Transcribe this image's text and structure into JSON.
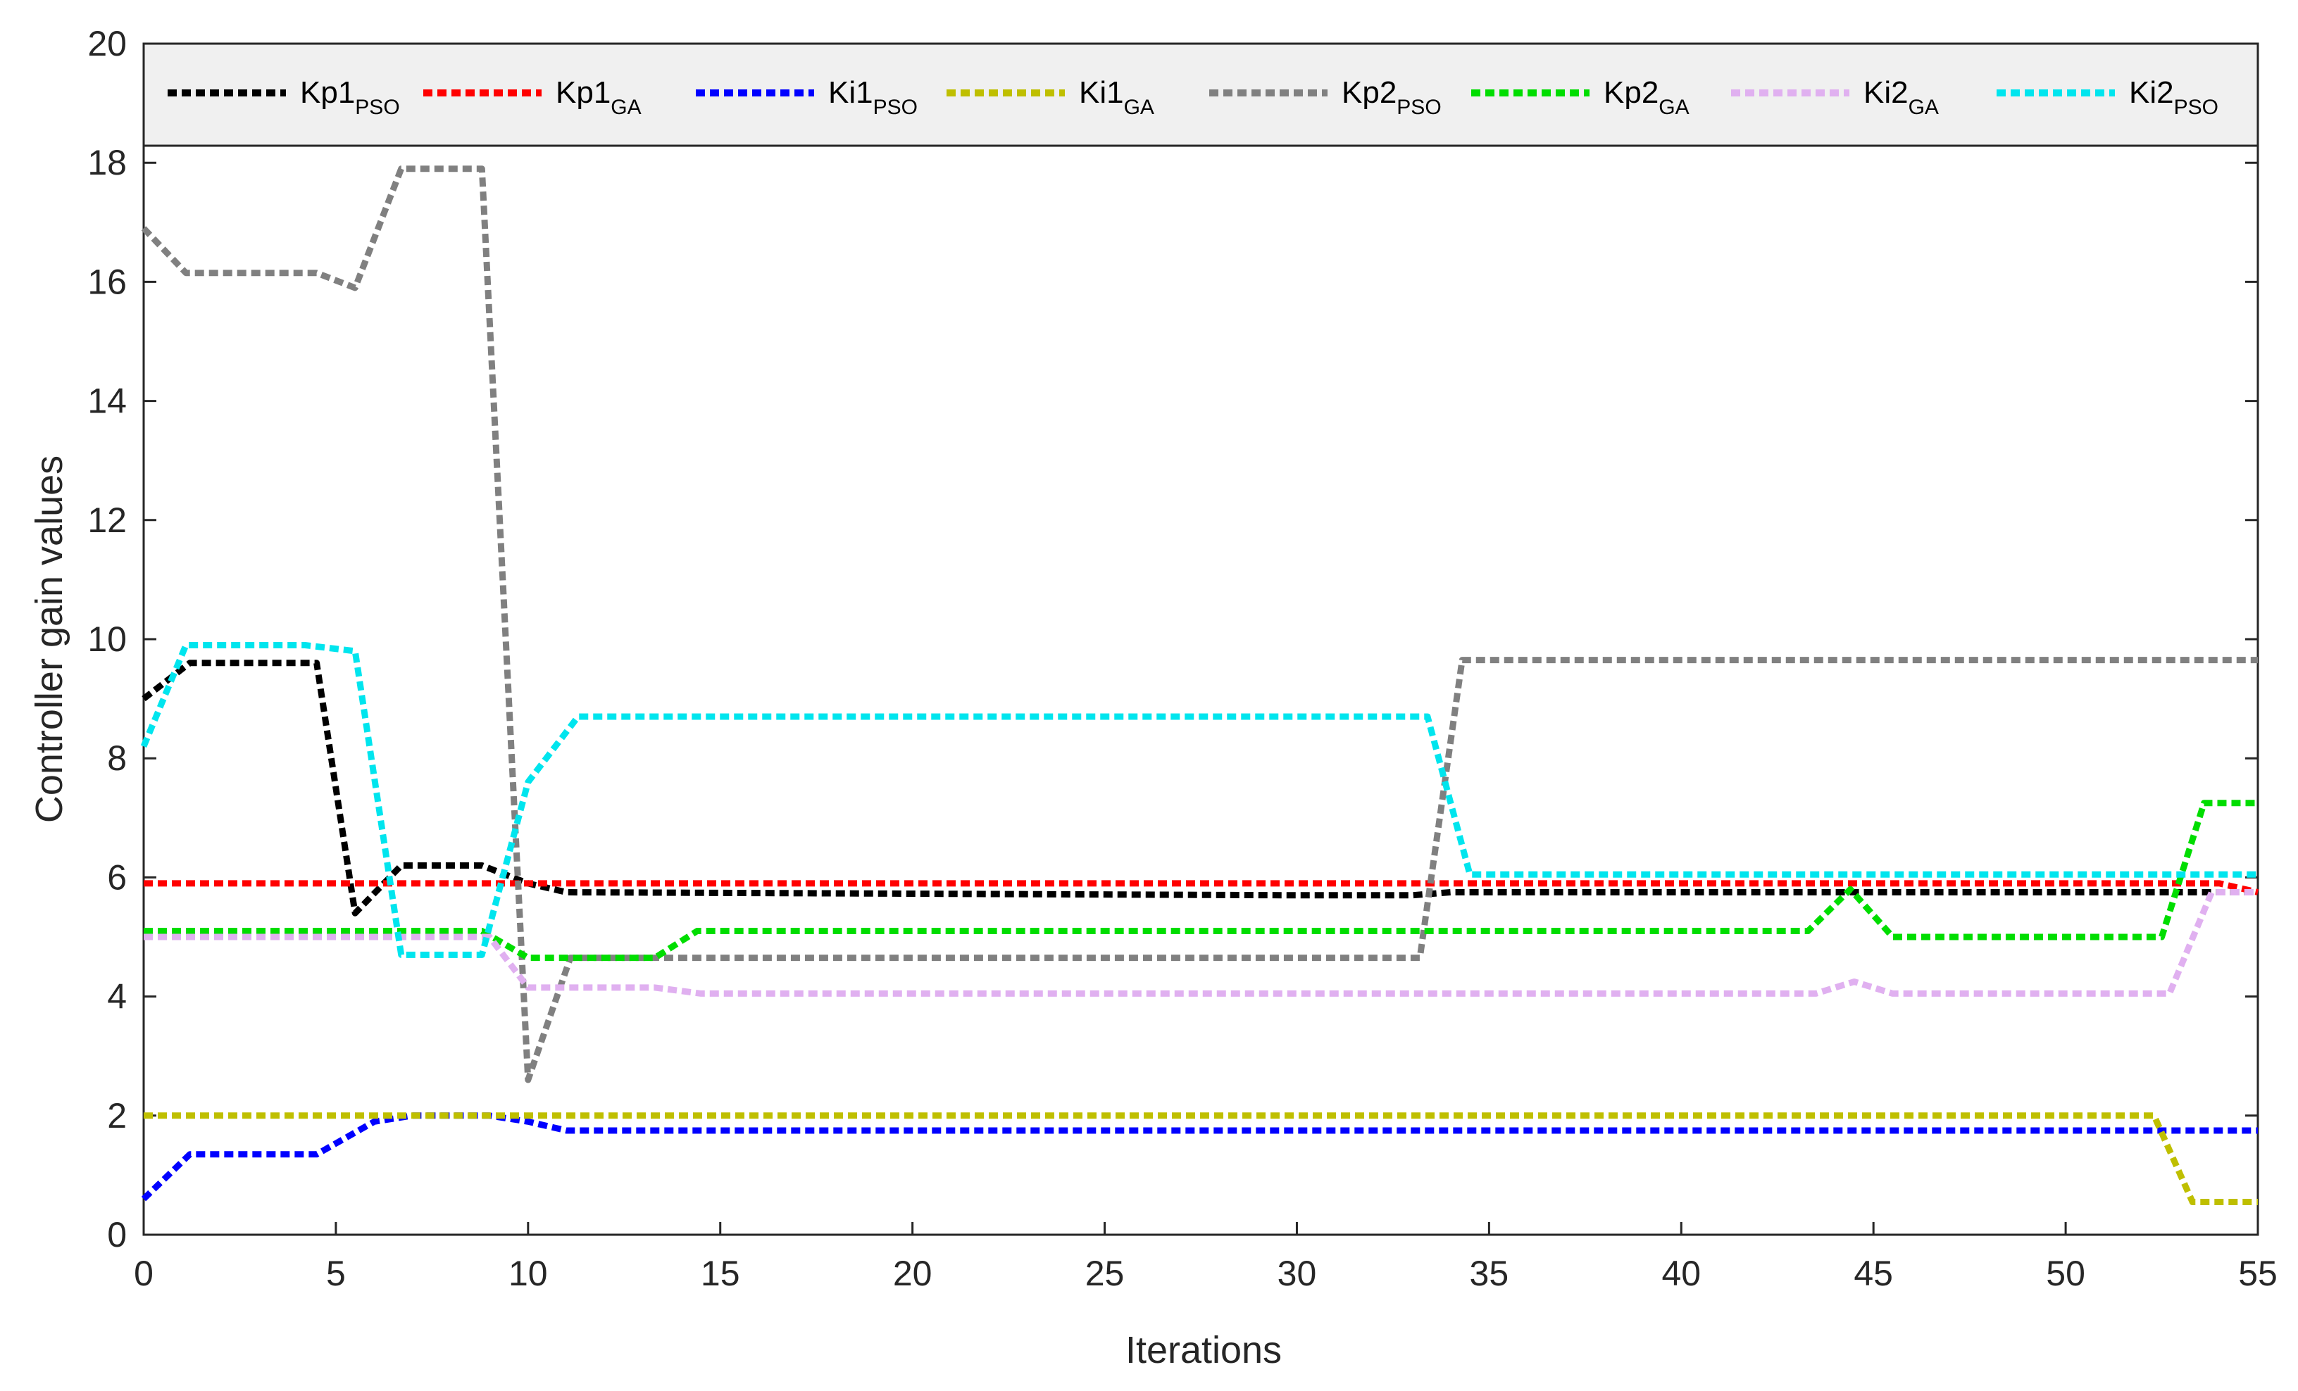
{
  "chart_data": {
    "type": "line",
    "title": "",
    "xlabel": "Iterations",
    "ylabel": "Controller gain values",
    "xlim": [
      0,
      55
    ],
    "ylim": [
      0,
      20
    ],
    "xticks": [
      0,
      5,
      10,
      15,
      20,
      25,
      30,
      35,
      40,
      45,
      50,
      55
    ],
    "yticks": [
      0,
      2,
      4,
      6,
      8,
      10,
      12,
      14,
      16,
      18,
      20
    ],
    "legend_position": "top",
    "series": [
      {
        "name": "Kp1",
        "sub": "PSO",
        "color": "#000000",
        "points": [
          [
            0,
            9.0
          ],
          [
            1.2,
            9.6
          ],
          [
            4.5,
            9.6
          ],
          [
            5.5,
            5.4
          ],
          [
            6.7,
            6.2
          ],
          [
            8.8,
            6.2
          ],
          [
            10,
            5.9
          ],
          [
            11,
            5.75
          ],
          [
            30,
            5.7
          ],
          [
            33,
            5.7
          ],
          [
            34,
            5.75
          ],
          [
            55,
            5.75
          ]
        ]
      },
      {
        "name": "Kp1",
        "sub": "GA",
        "color": "#ff0000",
        "points": [
          [
            0,
            5.9
          ],
          [
            54,
            5.9
          ],
          [
            55,
            5.75
          ]
        ]
      },
      {
        "name": "Ki1",
        "sub": "PSO",
        "color": "#0000ff",
        "points": [
          [
            0,
            0.6
          ],
          [
            1.2,
            1.35
          ],
          [
            4.5,
            1.35
          ],
          [
            6,
            1.9
          ],
          [
            7,
            2.0
          ],
          [
            9,
            2.0
          ],
          [
            10,
            1.9
          ],
          [
            11,
            1.75
          ],
          [
            55,
            1.75
          ]
        ]
      },
      {
        "name": "Ki1",
        "sub": "GA",
        "color": "#bfbf00",
        "points": [
          [
            0,
            2.0
          ],
          [
            52.3,
            2.0
          ],
          [
            53.3,
            0.55
          ],
          [
            55,
            0.55
          ]
        ]
      },
      {
        "name": "Kp2",
        "sub": "PSO",
        "color": "#808080",
        "points": [
          [
            0,
            16.9
          ],
          [
            1.1,
            16.15
          ],
          [
            4.5,
            16.15
          ],
          [
            5.5,
            15.9
          ],
          [
            6.7,
            17.9
          ],
          [
            8.8,
            17.9
          ],
          [
            10,
            2.6
          ],
          [
            11.1,
            4.65
          ],
          [
            33.2,
            4.65
          ],
          [
            34.3,
            9.65
          ],
          [
            55,
            9.65
          ]
        ]
      },
      {
        "name": "Kp2",
        "sub": "GA",
        "color": "#00dd00",
        "points": [
          [
            0,
            5.1
          ],
          [
            8.8,
            5.1
          ],
          [
            10,
            4.65
          ],
          [
            13.3,
            4.65
          ],
          [
            14.4,
            5.1
          ],
          [
            43.3,
            5.1
          ],
          [
            44.4,
            5.8
          ],
          [
            45.5,
            5.0
          ],
          [
            52.5,
            5.0
          ],
          [
            53.6,
            7.25
          ],
          [
            55,
            7.25
          ]
        ]
      },
      {
        "name": "Ki2",
        "sub": "GA",
        "color": "#e0b0f0",
        "points": [
          [
            0,
            5.0
          ],
          [
            9.0,
            5.0
          ],
          [
            10,
            4.15
          ],
          [
            13.3,
            4.15
          ],
          [
            14.5,
            4.05
          ],
          [
            43.5,
            4.05
          ],
          [
            44.5,
            4.25
          ],
          [
            45.5,
            4.05
          ],
          [
            52.7,
            4.05
          ],
          [
            53.8,
            5.75
          ],
          [
            55,
            5.75
          ]
        ]
      },
      {
        "name": "Ki2",
        "sub": "PSO",
        "color": "#00e5ee",
        "points": [
          [
            0,
            8.2
          ],
          [
            1.1,
            9.9
          ],
          [
            4.2,
            9.9
          ],
          [
            5.5,
            9.8
          ],
          [
            6.7,
            4.7
          ],
          [
            8.8,
            4.7
          ],
          [
            10,
            7.6
          ],
          [
            11.3,
            8.7
          ],
          [
            33.4,
            8.7
          ],
          [
            34.5,
            6.05
          ],
          [
            55,
            6.05
          ]
        ]
      }
    ]
  }
}
